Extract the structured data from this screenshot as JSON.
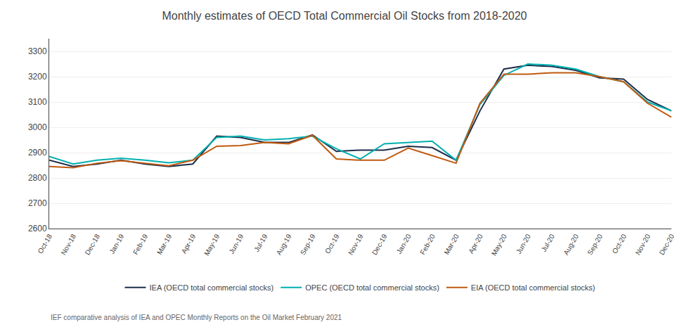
{
  "chart_data": {
    "type": "line",
    "title": "Monthly estimates of OECD Total Commercial Oil Stocks from 2018-2020",
    "subtitle": "IEF comparative analysis of IEA and OPEC Monthly Reports on the Oil Market February 2021",
    "categories": [
      "Oct-18",
      "Nov-18",
      "Dec-18",
      "Jan-19",
      "Feb-19",
      "Mar-19",
      "Apr-19",
      "May-19",
      "Jun-19",
      "Jul-19",
      "Aug-19",
      "Sep-19",
      "Oct-19",
      "Nov-19",
      "Dec-19",
      "Jan-20",
      "Feb-20",
      "Mar-20",
      "Apr-20",
      "May-20",
      "Jun-20",
      "Jul-20",
      "Aug-20",
      "Sep-20",
      "Oct-20",
      "Nov-20",
      "Dec-20"
    ],
    "series": [
      {
        "name": "IEA (OECD total commercial stocks)",
        "color": "#1c2e4a",
        "values": [
          2870,
          2845,
          2855,
          2870,
          2855,
          2845,
          2855,
          2965,
          2960,
          2940,
          2940,
          2970,
          2905,
          2910,
          2910,
          2925,
          2920,
          2870,
          3065,
          3230,
          3245,
          3240,
          3225,
          3195,
          3190,
          3110,
          3065
        ]
      },
      {
        "name": "OPEC (OECD total commercial stocks)",
        "color": "#00b0b0",
        "values": [
          2885,
          2855,
          2870,
          2878,
          2870,
          2860,
          2870,
          2960,
          2965,
          2950,
          2955,
          2965,
          2915,
          2875,
          2935,
          2940,
          2945,
          2870,
          3090,
          3205,
          3250,
          3245,
          3230,
          3200,
          3180,
          3100,
          3065
        ]
      },
      {
        "name": "EIA (OECD total commercial stocks)",
        "color": "#c05a10",
        "values": [
          2845,
          2840,
          2858,
          2868,
          2858,
          2848,
          2870,
          2925,
          2928,
          2940,
          2935,
          2968,
          2875,
          2870,
          2870,
          2918,
          2888,
          2858,
          3095,
          3210,
          3210,
          3215,
          3215,
          3200,
          3180,
          3095,
          3040
        ]
      }
    ],
    "ylim": [
      2600,
      3350
    ],
    "yticks": [
      2600,
      2700,
      2800,
      2900,
      3000,
      3100,
      3200,
      3300
    ],
    "grid": true,
    "legend": "bottom"
  }
}
